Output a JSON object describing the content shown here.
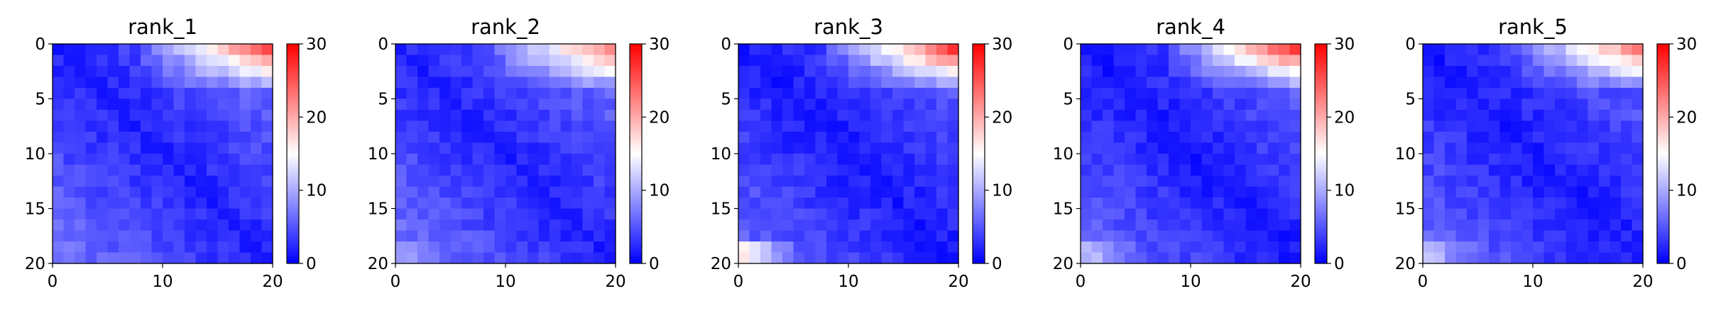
{
  "chart_data": [
    {
      "type": "heatmap",
      "title": "rank_1",
      "size": 20,
      "x_ticks": [
        "0",
        "10",
        "20"
      ],
      "y_ticks": [
        "0",
        "5",
        "10",
        "15",
        "20"
      ],
      "colorbar": {
        "ticks": [
          "0",
          "10",
          "20",
          "30"
        ],
        "vmin": 0,
        "vmax": 30,
        "colormap": "bwr"
      },
      "pattern": {
        "diag": 2.0,
        "rate": 0.25,
        "corner_boost": 18,
        "bottom_band": 0
      },
      "xlabel": "",
      "ylabel": ""
    },
    {
      "type": "heatmap",
      "title": "rank_2",
      "size": 20,
      "x_ticks": [
        "0",
        "10",
        "20"
      ],
      "y_ticks": [
        "0",
        "5",
        "10",
        "15",
        "20"
      ],
      "colorbar": {
        "ticks": [
          "0",
          "10",
          "20",
          "30"
        ],
        "vmin": 0,
        "vmax": 30,
        "colormap": "bwr"
      },
      "pattern": {
        "diag": 2.0,
        "rate": 0.26,
        "corner_boost": 15,
        "bottom_band": 2
      },
      "xlabel": "",
      "ylabel": ""
    },
    {
      "type": "heatmap",
      "title": "rank_3",
      "size": 20,
      "x_ticks": [
        "0",
        "10",
        "20"
      ],
      "y_ticks": [
        "0",
        "5",
        "10",
        "15",
        "20"
      ],
      "colorbar": {
        "ticks": [
          "0",
          "10",
          "20",
          "30"
        ],
        "vmin": 0,
        "vmax": 30,
        "colormap": "bwr"
      },
      "pattern": {
        "diag": 1.5,
        "rate": 0.24,
        "corner_boost": 20,
        "bottom_band": 10
      },
      "xlabel": "",
      "ylabel": ""
    },
    {
      "type": "heatmap",
      "title": "rank_4",
      "size": 20,
      "x_ticks": [
        "0",
        "10",
        "20"
      ],
      "y_ticks": [
        "0",
        "5",
        "10",
        "15",
        "20"
      ],
      "colorbar": {
        "ticks": [
          "0",
          "10",
          "20",
          "30"
        ],
        "vmin": 0,
        "vmax": 30,
        "colormap": "bwr"
      },
      "pattern": {
        "diag": 1.5,
        "rate": 0.25,
        "corner_boost": 20,
        "bottom_band": 5
      },
      "xlabel": "",
      "ylabel": ""
    },
    {
      "type": "heatmap",
      "title": "rank_5",
      "size": 20,
      "x_ticks": [
        "0",
        "10",
        "20"
      ],
      "y_ticks": [
        "0",
        "5",
        "10",
        "15",
        "20"
      ],
      "colorbar": {
        "ticks": [
          "0",
          "10",
          "20",
          "30"
        ],
        "vmin": 0,
        "vmax": 30,
        "colormap": "bwr"
      },
      "pattern": {
        "diag": 1.5,
        "rate": 0.25,
        "corner_boost": 16,
        "bottom_band": 5
      },
      "xlabel": "",
      "ylabel": ""
    }
  ]
}
